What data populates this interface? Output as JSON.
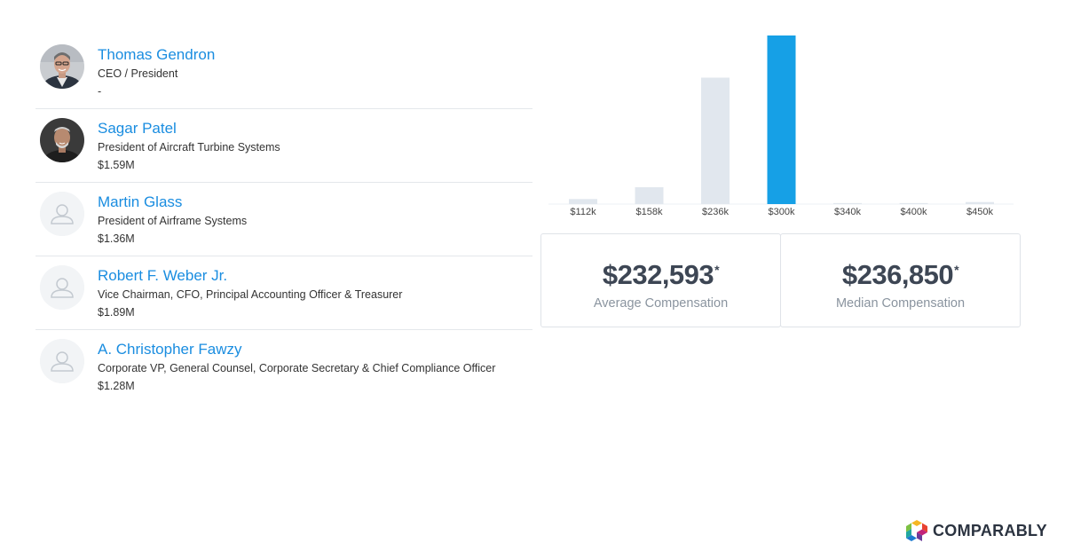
{
  "people": [
    {
      "name": "Thomas Gendron",
      "title": "CEO / President",
      "compensation": "-",
      "avatar": "photo"
    },
    {
      "name": "Sagar Patel",
      "title": "President of Aircraft Turbine Systems",
      "compensation": "$1.59M",
      "avatar": "photo"
    },
    {
      "name": "Martin Glass",
      "title": "President of Airframe Systems",
      "compensation": "$1.36M",
      "avatar": "placeholder"
    },
    {
      "name": "Robert F. Weber Jr.",
      "title": "Vice Chairman, CFO, Principal Accounting Officer & Treasurer",
      "compensation": "$1.89M",
      "avatar": "placeholder"
    },
    {
      "name": "A. Christopher Fawzy",
      "title": "Corporate VP, General Counsel, Corporate Secretary & Chief Compliance Officer",
      "compensation": "$1.28M",
      "avatar": "placeholder"
    }
  ],
  "chart_data": {
    "type": "bar",
    "categories": [
      "$112k",
      "$158k",
      "$236k",
      "$300k",
      "$340k",
      "$400k",
      "$450k"
    ],
    "values": [
      3,
      10,
      75,
      100,
      0.6,
      0.6,
      1.2
    ],
    "highlight_index": 3,
    "ylim": [
      0,
      100
    ],
    "colors": {
      "bar": "#e1e7ee",
      "highlight": "#16a0e6"
    }
  },
  "stats": {
    "average": {
      "value": "$232,593",
      "asterisk": "*",
      "label": "Average Compensation"
    },
    "median": {
      "value": "$236,850",
      "asterisk": "*",
      "label": "Median Compensation"
    }
  },
  "brand": {
    "name": "COMPARABLY"
  },
  "colors": {
    "link": "#1a8de0",
    "accent": "#16a0e6"
  }
}
